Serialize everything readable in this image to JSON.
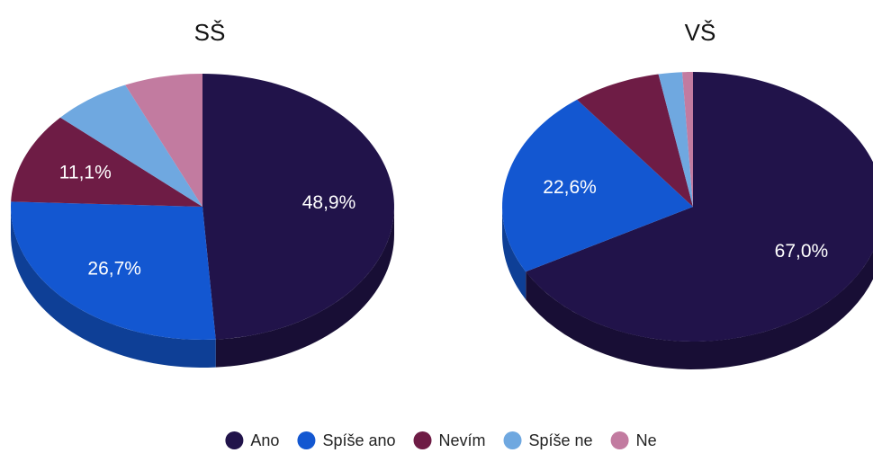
{
  "chart_data": [
    {
      "type": "pie",
      "title": "SŠ",
      "categories": [
        "Ano",
        "Spíše ano",
        "Nevím",
        "Spíše ne",
        "Ne"
      ],
      "values": [
        48.9,
        26.7,
        11.1,
        6.7,
        6.6
      ],
      "value_labels": [
        "48,9%",
        "26,7%",
        "11,1%",
        null,
        null
      ],
      "colors": [
        "#21134a",
        "#1357d1",
        "#6e1c45",
        "#6fa8e0",
        "#c27ba0"
      ],
      "legend": "bottom"
    },
    {
      "type": "pie",
      "title": "VŠ",
      "categories": [
        "Ano",
        "Spíše ano",
        "Nevím",
        "Spíše ne",
        "Ne"
      ],
      "values": [
        67.0,
        22.6,
        7.5,
        2.0,
        0.9
      ],
      "value_labels": [
        "67,0%",
        "22,6%",
        null,
        null,
        null
      ],
      "colors": [
        "#21134a",
        "#1357d1",
        "#6e1c45",
        "#6fa8e0",
        "#c27ba0"
      ],
      "legend": "bottom"
    }
  ]
}
